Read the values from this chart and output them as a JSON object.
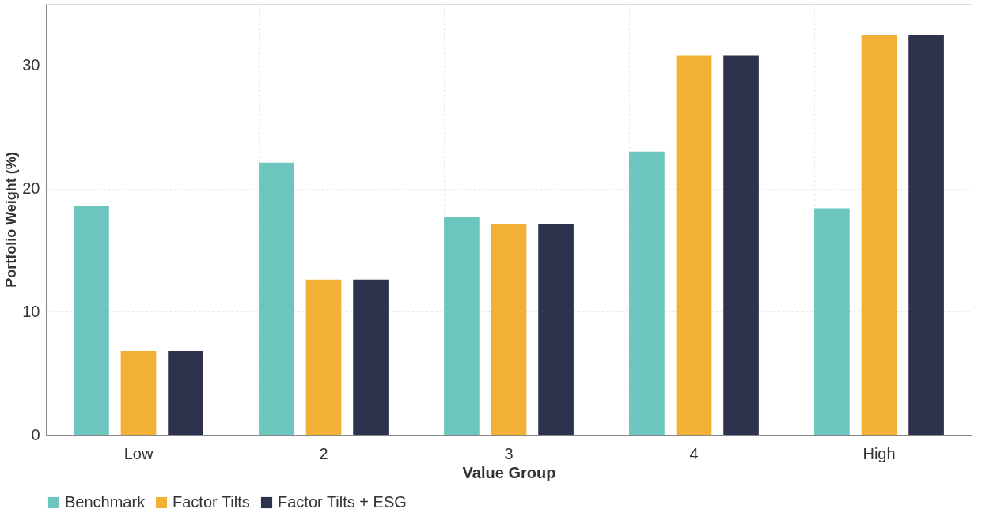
{
  "chart_data": {
    "type": "bar",
    "xlabel": "Value Group",
    "ylabel": "Portfolio Weight (%)",
    "categories": [
      "Low",
      "2",
      "3",
      "4",
      "High"
    ],
    "series": [
      {
        "name": "Benchmark",
        "color": "#6cc6bd",
        "values": [
          18.6,
          22.1,
          17.7,
          23.0,
          18.4
        ]
      },
      {
        "name": "Factor Tilts",
        "color": "#f2b035",
        "values": [
          6.8,
          12.6,
          17.1,
          30.8,
          32.5
        ]
      },
      {
        "name": "Factor Tilts + ESG",
        "color": "#2e334d",
        "values": [
          6.8,
          12.6,
          17.1,
          30.8,
          32.5
        ]
      }
    ],
    "ylim": [
      0,
      35
    ],
    "yticks": [
      0,
      10,
      20,
      30
    ],
    "grid": true,
    "legend": "bottom"
  }
}
